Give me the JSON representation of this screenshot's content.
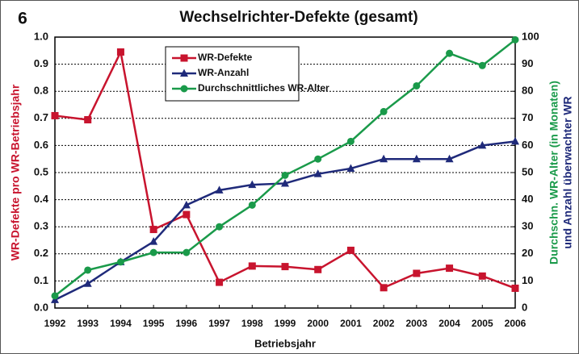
{
  "chart_data": {
    "type": "line",
    "figure_number": "6",
    "title": "Wechselrichter-Defekte (gesamt)",
    "x_label": "Betriebsjahr",
    "y_label": "WR-Defekte pro WR-Betriebsjahr",
    "y2_label": [
      "Durchschn. WR-Alter (in Monaten)",
      "und Anzahl überwachter WR"
    ],
    "y2_label_colors": [
      "#1a9a4a",
      "#1f2a7a"
    ],
    "y_label_color": "#c8142e",
    "categories": [
      "1992",
      "1993",
      "1994",
      "1995",
      "1996",
      "1997",
      "1998",
      "1999",
      "2000",
      "2001",
      "2002",
      "2003",
      "2004",
      "2005",
      "2006"
    ],
    "ylim": [
      0,
      1
    ],
    "yticks": [
      {
        "value": 0,
        "label": "0.0"
      },
      0.1,
      0.2,
      0.3,
      0.4,
      0.5,
      0.6,
      0.7,
      0.8,
      0.9,
      {
        "value": 1,
        "label": "1.0"
      }
    ],
    "y2lim": [
      0,
      100
    ],
    "y2ticks": [
      0,
      10,
      20,
      30,
      40,
      50,
      60,
      70,
      80,
      90,
      100
    ],
    "grid": true,
    "legend": "upper left",
    "series": [
      {
        "name": "WR-Defekte",
        "color": "#c8142e",
        "marker": "square",
        "values": [
          0.71,
          0.695,
          0.945,
          0.29,
          0.345,
          0.095,
          0.155,
          0.153,
          0.142,
          0.213,
          0.075,
          0.128,
          0.147,
          0.118,
          0.073
        ]
      },
      {
        "name": "WR-Anzahl",
        "color": "#1f2a7a",
        "marker": "triangle",
        "axis": "y2",
        "values": [
          3,
          9,
          17,
          24.5,
          38,
          43.5,
          45.5,
          46,
          49.5,
          51.5,
          55,
          55,
          55,
          60,
          61.5
        ]
      },
      {
        "name": "Durchschnittliches WR-Alter",
        "color": "#1a9a4a",
        "marker": "circle",
        "axis": "y2",
        "values": [
          4.5,
          14,
          17,
          20.5,
          20.5,
          30,
          38,
          49,
          55,
          61.5,
          72.5,
          82,
          94,
          89.5,
          99
        ]
      }
    ]
  }
}
